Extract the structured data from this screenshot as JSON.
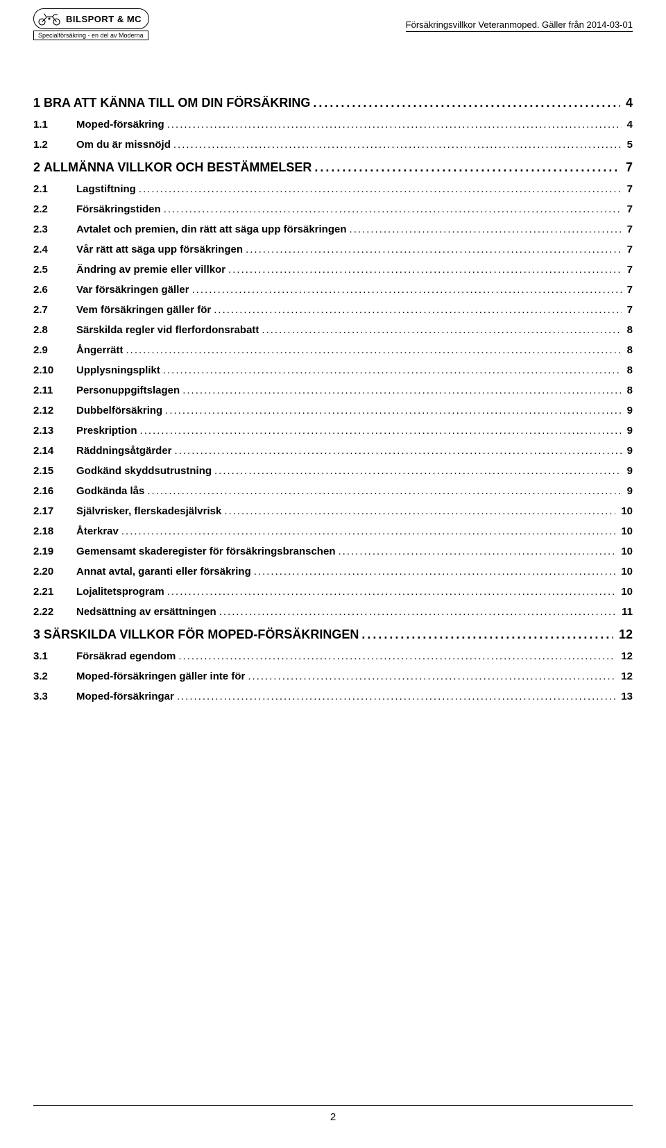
{
  "header": {
    "logo_text": "BILSPORT & MC",
    "logo_sub": "Specialförsäkring - en del av Moderna",
    "right_text": "Försäkringsvillkor Veteranmoped. Gäller från 2014-03-01"
  },
  "toc": [
    {
      "level": 1,
      "num": "1",
      "title": "BRA ATT KÄNNA TILL OM DIN FÖRSÄKRING",
      "page": "4"
    },
    {
      "level": 2,
      "num": "1.1",
      "title": "Moped-försäkring",
      "page": "4"
    },
    {
      "level": 2,
      "num": "1.2",
      "title": "Om du är missnöjd",
      "page": "5"
    },
    {
      "level": 1,
      "num": "2",
      "title": "ALLMÄNNA VILLKOR OCH BESTÄMMELSER",
      "page": "7"
    },
    {
      "level": 2,
      "num": "2.1",
      "title": "Lagstiftning",
      "page": "7"
    },
    {
      "level": 2,
      "num": "2.2",
      "title": "Försäkringstiden",
      "page": "7"
    },
    {
      "level": 2,
      "num": "2.3",
      "title": "Avtalet och premien, din rätt att säga upp försäkringen",
      "page": "7"
    },
    {
      "level": 2,
      "num": "2.4",
      "title": "Vår rätt att säga upp försäkringen",
      "page": "7"
    },
    {
      "level": 2,
      "num": "2.5",
      "title": "Ändring av premie eller villkor",
      "page": "7"
    },
    {
      "level": 2,
      "num": "2.6",
      "title": "Var försäkringen gäller",
      "page": "7"
    },
    {
      "level": 2,
      "num": "2.7",
      "title": "Vem försäkringen gäller för",
      "page": "7"
    },
    {
      "level": 2,
      "num": "2.8",
      "title": "Särskilda regler vid flerfordonsrabatt",
      "page": "8"
    },
    {
      "level": 2,
      "num": "2.9",
      "title": "Ångerrätt",
      "page": "8"
    },
    {
      "level": 2,
      "num": "2.10",
      "title": "Upplysningsplikt",
      "page": "8"
    },
    {
      "level": 2,
      "num": "2.11",
      "title": "Personuppgiftslagen",
      "page": "8"
    },
    {
      "level": 2,
      "num": "2.12",
      "title": "Dubbelförsäkring",
      "page": "9"
    },
    {
      "level": 2,
      "num": "2.13",
      "title": "Preskription",
      "page": "9"
    },
    {
      "level": 2,
      "num": "2.14",
      "title": "Räddningsåtgärder",
      "page": "9"
    },
    {
      "level": 2,
      "num": "2.15",
      "title": "Godkänd skyddsutrustning",
      "page": "9"
    },
    {
      "level": 2,
      "num": "2.16",
      "title": "Godkända lås",
      "page": "9"
    },
    {
      "level": 2,
      "num": "2.17",
      "title": "Självrisker, flerskadesjälvrisk",
      "page": "10"
    },
    {
      "level": 2,
      "num": "2.18",
      "title": "Återkrav",
      "page": "10"
    },
    {
      "level": 2,
      "num": "2.19",
      "title": "Gemensamt skaderegister för försäkringsbranschen",
      "page": "10"
    },
    {
      "level": 2,
      "num": "2.20",
      "title": "Annat avtal, garanti eller försäkring",
      "page": "10"
    },
    {
      "level": 2,
      "num": "2.21",
      "title": "Lojalitetsprogram",
      "page": "10"
    },
    {
      "level": 2,
      "num": "2.22",
      "title": "Nedsättning av ersättningen",
      "page": "11"
    },
    {
      "level": 1,
      "num": "3",
      "title": "SÄRSKILDA VILLKOR FÖR MOPED-FÖRSÄKRINGEN",
      "page": "12"
    },
    {
      "level": 2,
      "num": "3.1",
      "title": "Försäkrad egendom",
      "page": "12"
    },
    {
      "level": 2,
      "num": "3.2",
      "title": "Moped-försäkringen gäller inte för",
      "page": "12"
    },
    {
      "level": 2,
      "num": "3.3",
      "title": "Moped-försäkringar",
      "page": "13"
    }
  ],
  "footer": {
    "page_number": "2"
  }
}
